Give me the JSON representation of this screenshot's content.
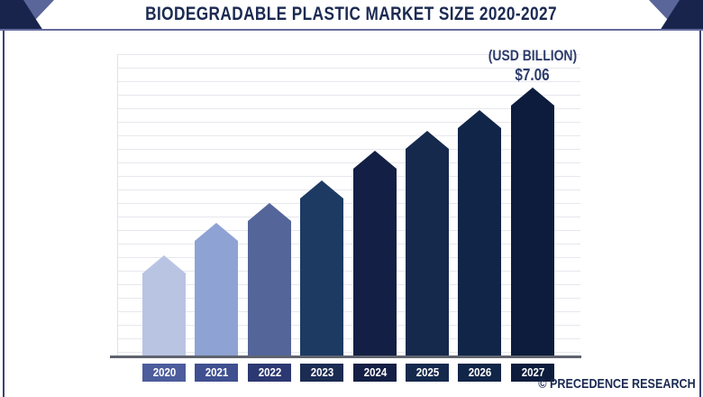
{
  "title": "BIODEGRADABLE PLASTIC MARKET SIZE 2020-2027",
  "annotation": {
    "unit_label": "(USD BILLION)",
    "value_label": "$7.06"
  },
  "footer": {
    "credit": "© PRECEDENCE RESEARCH"
  },
  "chart_data": {
    "type": "bar",
    "title": "Biodegradable Plastic Market Size 2020-2027",
    "unit": "USD Billion",
    "categories": [
      "2020",
      "2021",
      "2022",
      "2023",
      "2024",
      "2025",
      "2026",
      "2027"
    ],
    "values": [
      2.64,
      3.49,
      4.02,
      4.61,
      5.4,
      5.92,
      6.47,
      7.06
    ],
    "labeled_values": {
      "2027": 7.06
    },
    "ylim": [
      0,
      7.5
    ],
    "grid": true,
    "legend": "none",
    "bar_colors": [
      "#b9c4e3",
      "#8ea3d3",
      "#54659a",
      "#1d3a63",
      "#131f44",
      "#15294d",
      "#112548",
      "#0d1c3c"
    ],
    "label_box_colors": [
      "#4c5c9c",
      "#3f4f90",
      "#2c3872",
      "#1b2b52",
      "#131f44",
      "#15294d",
      "#112548",
      "#0d1c3c"
    ]
  },
  "colors": {
    "title_navy": "#1b2a52",
    "annotation_navy": "#2d3c6b",
    "header_rule": "#666b9e",
    "frame_border": "#3c4272",
    "axis_gray": "#5f636e",
    "gridline": "#e7e8ee",
    "corner_triangle_medium": "#5a6599",
    "corner_triangle_dark": "#18244c"
  }
}
